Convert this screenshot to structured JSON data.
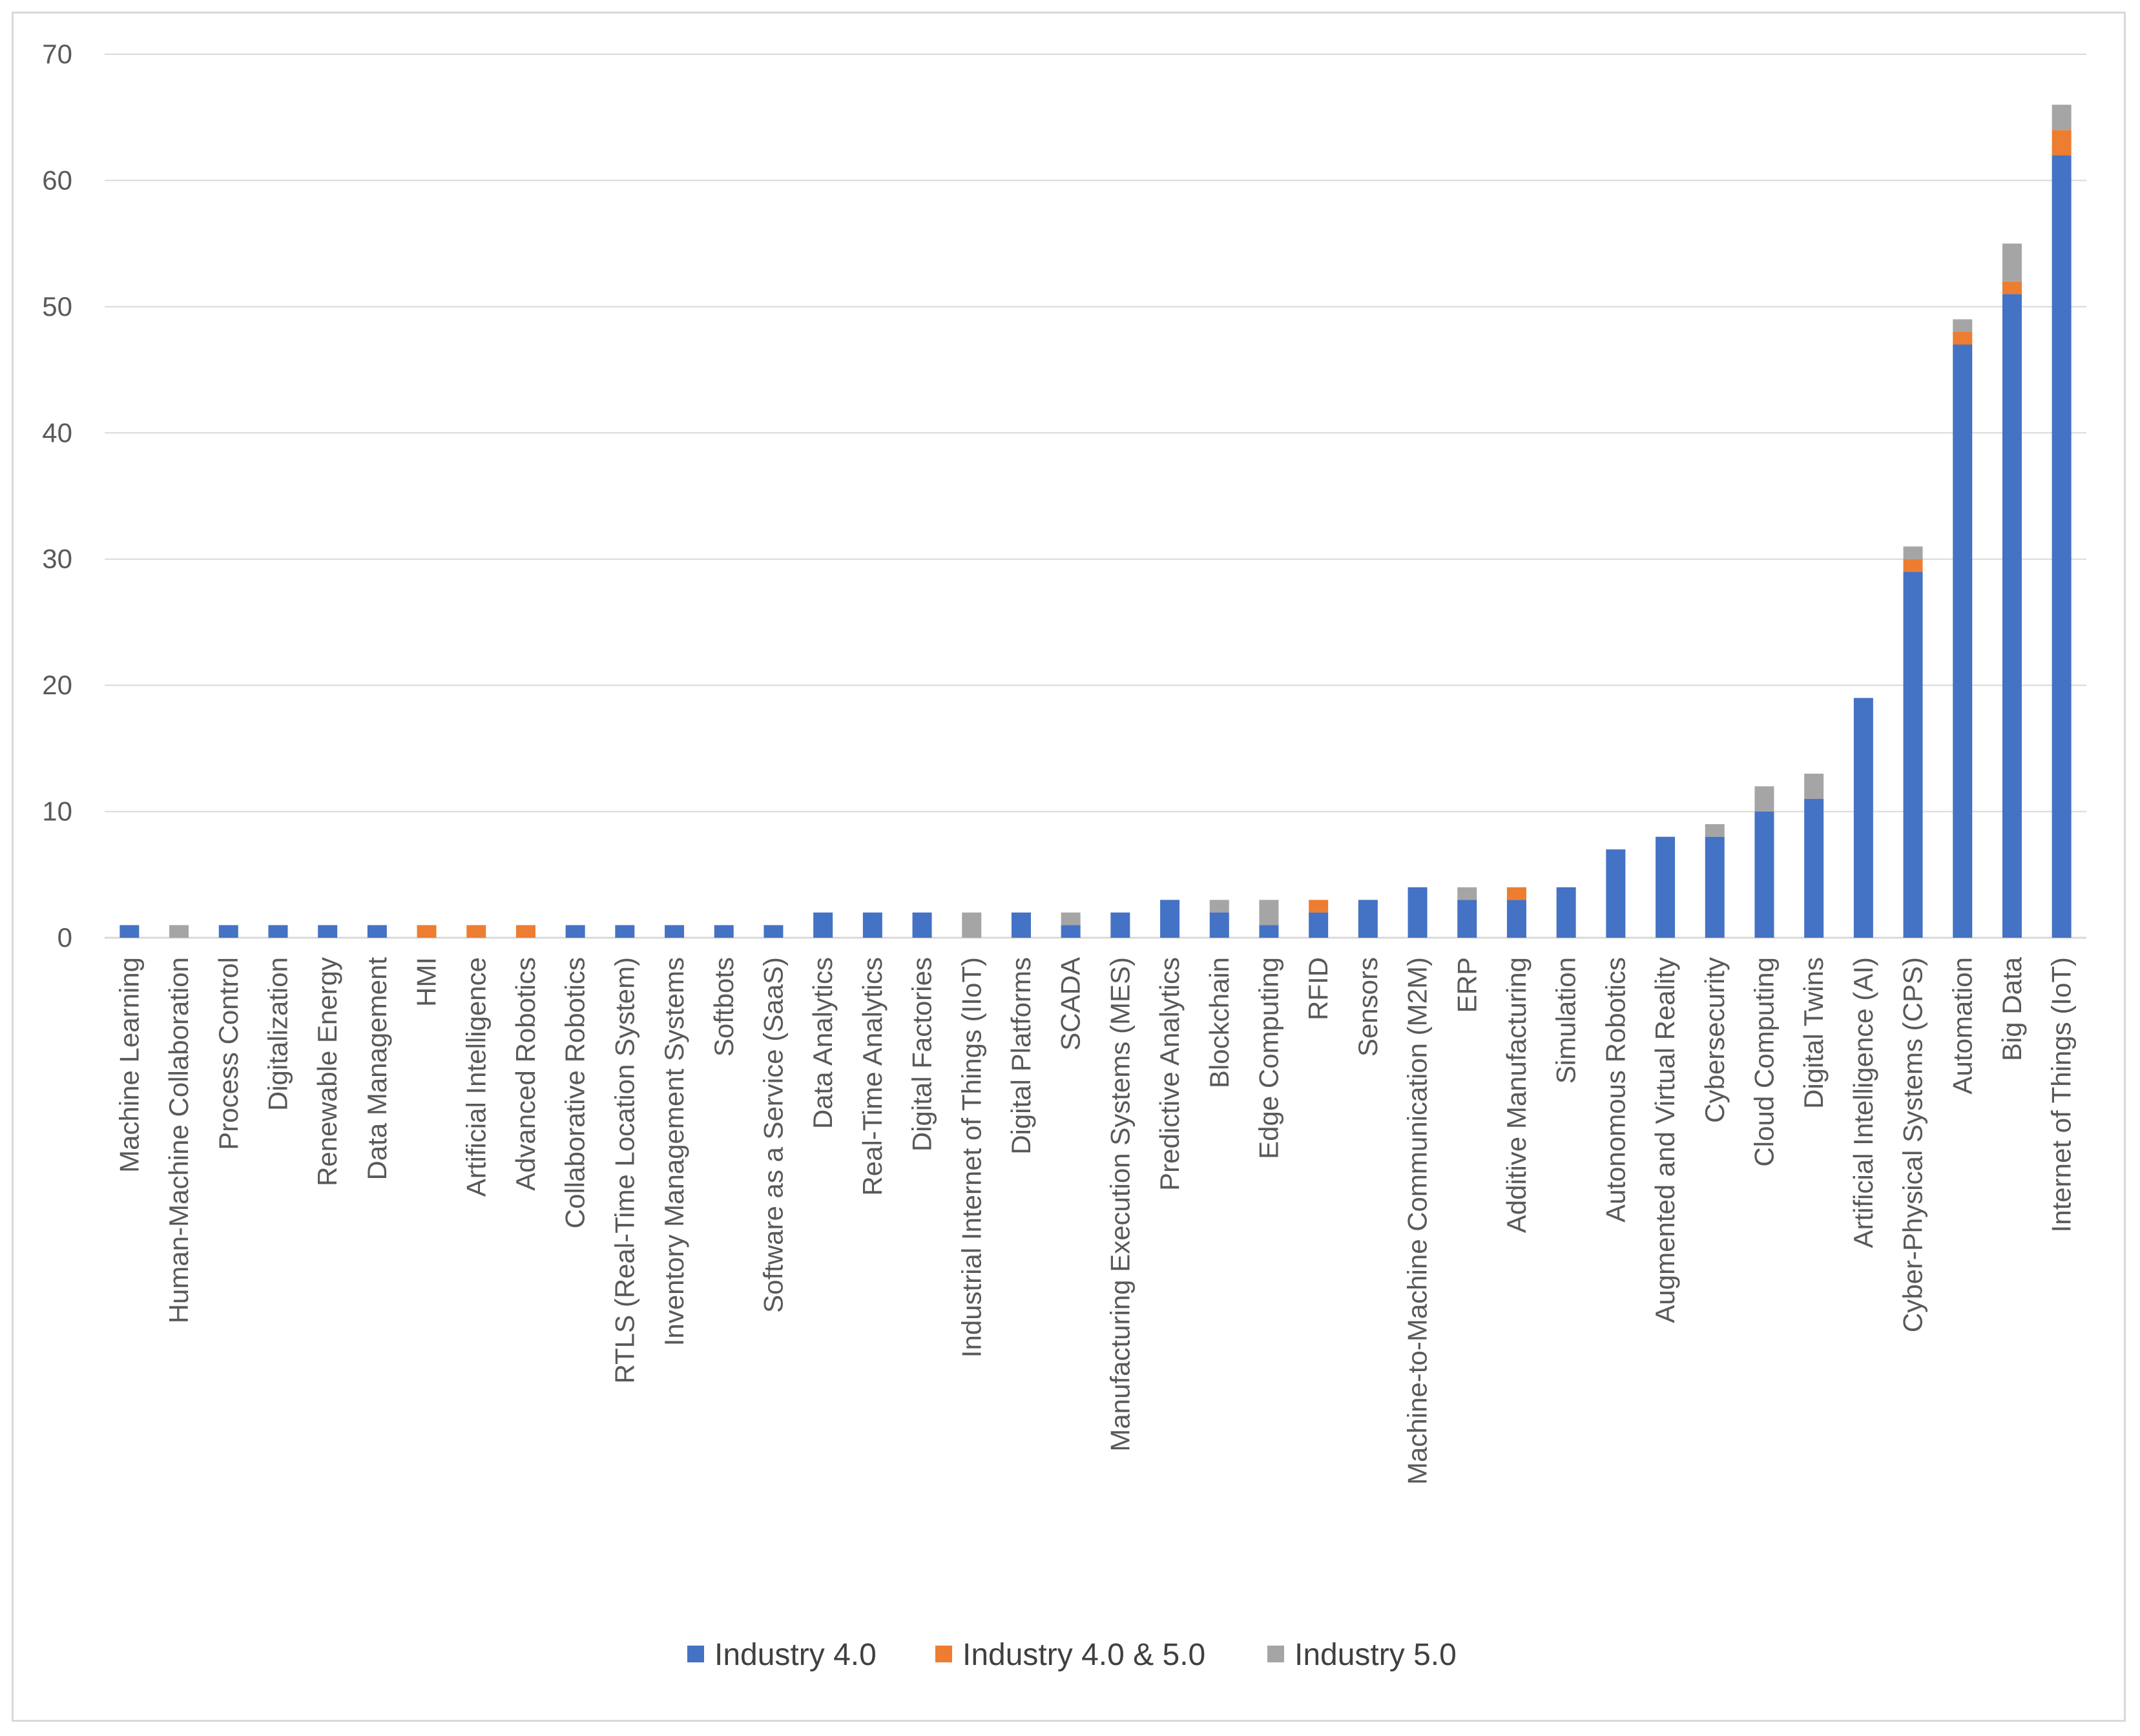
{
  "chart_data": {
    "type": "bar",
    "stacked": true,
    "title": "",
    "xlabel": "",
    "ylabel": "",
    "ylim": [
      0,
      70
    ],
    "yticks": [
      0,
      10,
      20,
      30,
      40,
      50,
      60,
      70
    ],
    "grid": true,
    "legend_position": "bottom",
    "categories": [
      "Machine Learning",
      "Human-Machine Collaboration",
      "Process Control",
      "Digitalization",
      "Renewable Energy",
      "Data Management",
      "HMI",
      "Artificial Intelligence",
      "Advanced Robotics",
      "Collaborative Robotics",
      "RTLS (Real-Time Location System)",
      "Inventory Management Systems",
      "Softbots",
      "Software as a Service (SaaS)",
      "Data Analytics",
      "Real-Time Analytics",
      "Digital Factories",
      "Industrial Internet of Things (IIoT)",
      "Digital Platforms",
      "SCADA",
      "Manufacturing Execution Systems (MES)",
      "Predictive Analytics",
      "Blockchain",
      "Edge Computing",
      "RFID",
      "Sensors",
      "Machine-to-Machine Communication (M2M)",
      "ERP",
      "Additive Manufacturing",
      "Simulation",
      "Autonomous Robotics",
      "Augmented and Virtual Reality",
      "Cybersecurity",
      "Cloud Computing",
      "Digital Twins",
      "Artificial Intelligence (AI)",
      "Cyber-Physical Systems (CPS)",
      "Automation",
      "Big Data",
      "Internet of Things (IoT)"
    ],
    "series": [
      {
        "name": "Industry 4.0",
        "color": "#4472c4",
        "values": [
          1,
          0,
          1,
          1,
          1,
          1,
          0,
          0,
          0,
          1,
          1,
          1,
          1,
          1,
          2,
          2,
          2,
          0,
          2,
          1,
          2,
          3,
          2,
          1,
          2,
          3,
          4,
          3,
          3,
          4,
          7,
          8,
          8,
          10,
          11,
          19,
          29,
          47,
          51,
          62
        ]
      },
      {
        "name": "Industry 4.0 & 5.0",
        "color": "#ed7d31",
        "values": [
          0,
          0,
          0,
          0,
          0,
          0,
          1,
          1,
          1,
          0,
          0,
          0,
          0,
          0,
          0,
          0,
          0,
          0,
          0,
          0,
          0,
          0,
          0,
          0,
          1,
          0,
          0,
          0,
          1,
          0,
          0,
          0,
          0,
          0,
          0,
          0,
          1,
          1,
          1,
          2
        ]
      },
      {
        "name": "Industry 5.0",
        "color": "#a5a5a5",
        "values": [
          0,
          1,
          0,
          0,
          0,
          0,
          0,
          0,
          0,
          0,
          0,
          0,
          0,
          0,
          0,
          0,
          0,
          2,
          0,
          1,
          0,
          0,
          1,
          2,
          0,
          0,
          0,
          1,
          0,
          0,
          0,
          0,
          1,
          2,
          2,
          0,
          1,
          1,
          3,
          2
        ]
      }
    ]
  }
}
